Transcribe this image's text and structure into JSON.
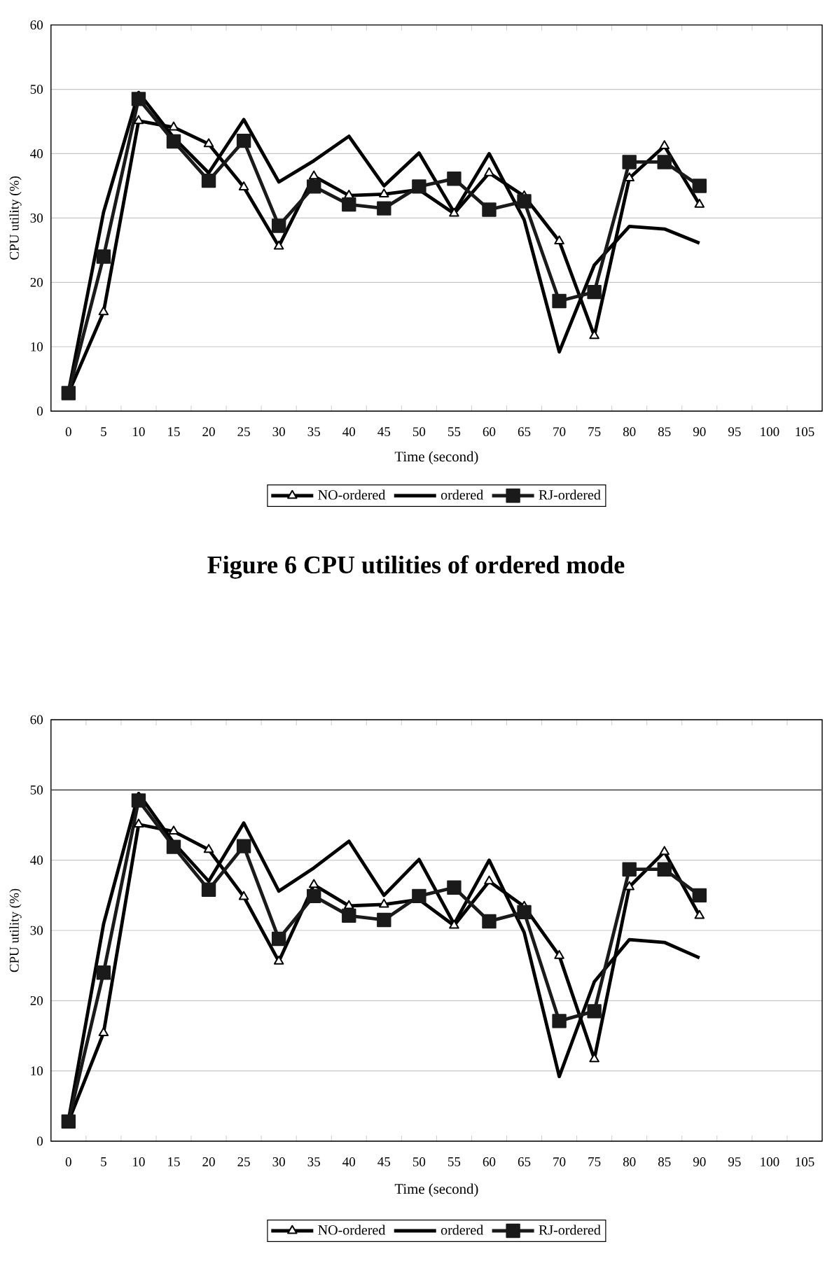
{
  "chart_data": [
    {
      "type": "line",
      "xlabel": "Time (second)",
      "ylabel": "CPU utility (%)",
      "categories": [
        "0",
        "5",
        "10",
        "15",
        "20",
        "25",
        "30",
        "35",
        "40",
        "45",
        "50",
        "55",
        "60",
        "65",
        "70",
        "75",
        "80",
        "85",
        "90",
        "95",
        "100",
        "105"
      ],
      "ylim": [
        0,
        60
      ],
      "yticks": [
        0,
        10,
        20,
        30,
        40,
        50,
        60
      ],
      "grid": "y",
      "legend": "bottom",
      "line_style": "solid",
      "series": [
        {
          "name": "NO-ordered",
          "color": "#000000",
          "marker": "triangle",
          "values": [
            2.8,
            15.4,
            45.1,
            44.1,
            41.5,
            34.8,
            25.6,
            36.5,
            33.5,
            33.7,
            34.4,
            30.7,
            37.0,
            33.4,
            26.4,
            11.7,
            36.2,
            41.2,
            32.1,
            null,
            null,
            null
          ]
        },
        {
          "name": "ordered",
          "color": "#000000",
          "marker": "none",
          "values": [
            3.0,
            30.9,
            49.5,
            42.5,
            37.0,
            45.3,
            35.6,
            38.9,
            42.7,
            35.0,
            40.1,
            30.9,
            40.0,
            29.7,
            9.2,
            22.7,
            28.7,
            28.3,
            26.1,
            null,
            null,
            null
          ]
        },
        {
          "name": "RJ-ordered",
          "color": "#1a1a1a",
          "marker": "square",
          "values": [
            2.8,
            24.0,
            48.5,
            41.9,
            35.8,
            42.0,
            28.8,
            34.9,
            32.1,
            31.5,
            34.9,
            36.1,
            31.3,
            32.6,
            17.1,
            18.5,
            38.7,
            38.7,
            35.0,
            null,
            null,
            null
          ]
        }
      ],
      "annotations": [
        "Figure 6 CPU utilities of ordered mode"
      ]
    },
    {
      "type": "line",
      "xlabel": "Time (second)",
      "ylabel": "CPU utility (%)",
      "categories": [
        "0",
        "5",
        "10",
        "15",
        "20",
        "25",
        "30",
        "35",
        "40",
        "45",
        "50",
        "55",
        "60",
        "65",
        "70",
        "75",
        "80",
        "85",
        "90",
        "95",
        "100",
        "105"
      ],
      "ylim": [
        0,
        60
      ],
      "yticks": [
        0,
        10,
        20,
        30,
        40,
        50,
        60
      ],
      "grid": "y",
      "legend": "bottom",
      "line_style": "solid",
      "series": [
        {
          "name": "NO-ordered",
          "color": "#000000",
          "marker": "triangle",
          "values": [
            2.8,
            15.4,
            45.1,
            44.1,
            41.5,
            34.8,
            25.6,
            36.5,
            33.5,
            33.7,
            34.4,
            30.7,
            37.0,
            33.4,
            26.4,
            11.7,
            36.2,
            41.2,
            32.1,
            null,
            null,
            null
          ]
        },
        {
          "name": "ordered",
          "color": "#000000",
          "marker": "none",
          "values": [
            3.0,
            30.9,
            49.5,
            42.5,
            37.0,
            45.3,
            35.6,
            38.9,
            42.7,
            35.0,
            40.1,
            30.9,
            40.0,
            29.7,
            9.2,
            22.7,
            28.7,
            28.3,
            26.1,
            null,
            null,
            null
          ]
        },
        {
          "name": "RJ-ordered",
          "color": "#1a1a1a",
          "marker": "square",
          "values": [
            2.8,
            24.0,
            48.5,
            41.9,
            35.8,
            42.0,
            28.8,
            34.9,
            32.1,
            31.5,
            34.9,
            36.1,
            31.3,
            32.6,
            17.1,
            18.5,
            38.7,
            38.7,
            35.0,
            null,
            null,
            null
          ]
        }
      ],
      "ref_lines": [
        {
          "axis": "y",
          "value": 50,
          "color": "#595959"
        }
      ]
    }
  ]
}
